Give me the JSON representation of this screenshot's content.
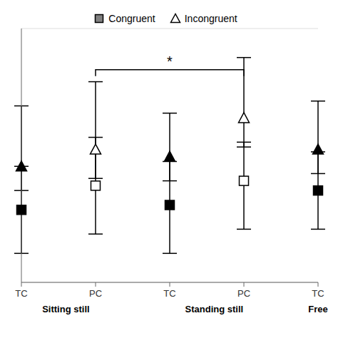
{
  "chart_data": {
    "type": "scatter",
    "categories": [
      "TC",
      "PC",
      "TC",
      "PC",
      "TC"
    ],
    "groups": [
      "Sitting still",
      "Sitting still",
      "Standing still",
      "Standing still",
      "Free"
    ],
    "series": [
      {
        "name": "Congruent",
        "marker": "square",
        "color": "gray",
        "colors": [
          "black",
          "white",
          "black",
          "white",
          "black"
        ],
        "values": [
          5.0,
          6.0,
          5.2,
          6.2,
          5.8
        ],
        "error_up": [
          1.8,
          2.0,
          1.8,
          1.6,
          1.6
        ],
        "error_down": [
          1.8,
          2.0,
          2.0,
          2.0,
          1.6
        ]
      },
      {
        "name": "Incongruent",
        "marker": "triangle",
        "color": "white",
        "colors": [
          "black",
          "white",
          "black",
          "white",
          "black"
        ],
        "values": [
          6.8,
          7.5,
          7.2,
          8.8,
          7.5
        ],
        "error_up": [
          2.5,
          2.8,
          1.8,
          2.5,
          2.0
        ],
        "error_down": [
          1.0,
          1.2,
          1.0,
          1.2,
          1.0
        ]
      }
    ],
    "annotations": [
      {
        "text": "*",
        "from": 1,
        "to": 3,
        "y": 10.8
      }
    ],
    "ylim": [
      2.0,
      12.5
    ],
    "yticks": [
      3.5,
      5.0,
      6.5,
      8.0,
      9.5,
      11.0
    ],
    "grid": true,
    "legend": "top",
    "tick_labels": "x"
  }
}
